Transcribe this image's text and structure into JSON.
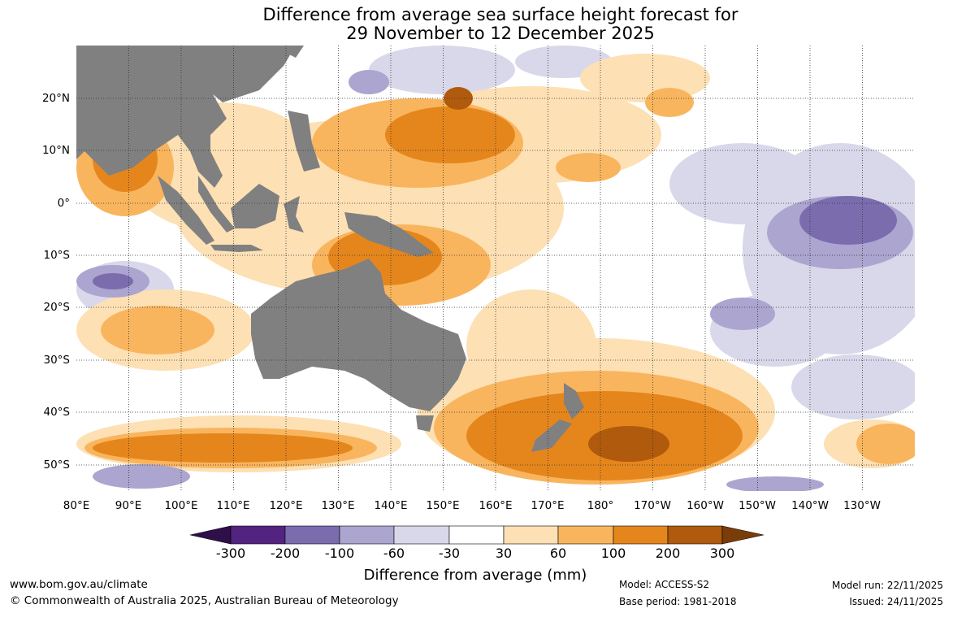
{
  "title": {
    "line1": "Difference from average sea surface height forecast for",
    "line2": "29 November to 12 December 2025"
  },
  "latitude_ticks": [
    "20°N",
    "10°N",
    "0°",
    "10°S",
    "20°S",
    "30°S",
    "40°S",
    "50°S"
  ],
  "longitude_ticks": [
    "80°E",
    "90°E",
    "100°E",
    "110°E",
    "120°E",
    "130°E",
    "140°E",
    "150°E",
    "160°E",
    "170°E",
    "180°",
    "170°W",
    "160°W",
    "150°W",
    "140°W",
    "130°W"
  ],
  "colorbar": {
    "labels": [
      "-300",
      "-200",
      "-100",
      "-60",
      "-30",
      "30",
      "60",
      "100",
      "200",
      "300"
    ],
    "colors": [
      "#2f0f4a",
      "#52237f",
      "#7b6cae",
      "#aba5cf",
      "#d8d8ea",
      "#ffffff",
      "#fde0b4",
      "#f9b55e",
      "#e5861c",
      "#b05a0d",
      "#7a3d0a"
    ],
    "title": "Difference from average (mm)"
  },
  "footer": {
    "website": "www.bom.gov.au/climate",
    "copyright": "© Commonwealth of Australia 2025, Australian Bureau of Meteorology",
    "model": "Model: ACCESS-S2",
    "base_period": "Base period: 1981-2018",
    "model_run": "Model run: 22/11/2025",
    "issued": "Issued: 24/11/2025"
  },
  "colors": {
    "land": "#808080",
    "gridline": "#333333"
  }
}
